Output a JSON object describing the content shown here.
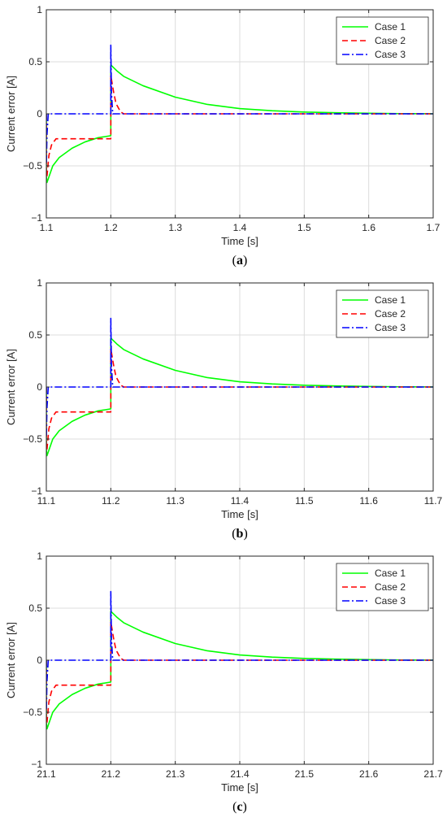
{
  "colors": {
    "case1": "#00ff00",
    "case2": "#ff0000",
    "case3": "#0000ff",
    "grid": "#dcdcdc",
    "axes": "#262626"
  },
  "chart_data": [
    {
      "type": "line",
      "panel": "a",
      "caption_letter": "a",
      "xlabel": "Time [s]",
      "ylabel": "Current error [A]",
      "xlim": [
        1.1,
        1.7
      ],
      "ylim": [
        -1,
        1
      ],
      "xticks": [
        1.1,
        1.2,
        1.3,
        1.4,
        1.5,
        1.6,
        1.7
      ],
      "xtick_labels": [
        "1.1",
        "1.2",
        "1.3",
        "1.4",
        "1.5",
        "1.6",
        "1.7"
      ],
      "yticks": [
        -1,
        -0.5,
        0,
        0.5,
        1
      ],
      "ytick_labels": [
        "−1",
        "−0.5",
        "0",
        "0.5",
        "1"
      ],
      "grid": true,
      "legend_position": "top-right",
      "series": [
        {
          "name": "Case 1",
          "style": "solid",
          "color": "#00ff00",
          "x": [
            1.1,
            1.1,
            1.101,
            1.11,
            1.12,
            1.14,
            1.16,
            1.18,
            1.2,
            1.2,
            1.21,
            1.22,
            1.25,
            1.3,
            1.35,
            1.4,
            1.45,
            1.5,
            1.55,
            1.6,
            1.65,
            1.7
          ],
          "y": [
            0,
            -0.6,
            -0.66,
            -0.5,
            -0.42,
            -0.33,
            -0.27,
            -0.23,
            -0.21,
            0.47,
            0.41,
            0.36,
            0.27,
            0.16,
            0.09,
            0.05,
            0.03,
            0.017,
            0.01,
            0.005,
            0.002,
            0.001
          ]
        },
        {
          "name": "Case 2",
          "style": "dashed",
          "color": "#ff0000",
          "x": [
            1.1,
            1.1,
            1.101,
            1.104,
            1.108,
            1.115,
            1.2,
            1.2,
            1.204,
            1.208,
            1.215,
            1.22,
            1.7
          ],
          "y": [
            0,
            -0.58,
            -0.6,
            -0.4,
            -0.3,
            -0.24,
            -0.24,
            0.37,
            0.22,
            0.1,
            0.02,
            0,
            0
          ]
        },
        {
          "name": "Case 3",
          "style": "dashdot",
          "color": "#0000ff",
          "x": [
            1.1,
            1.1,
            1.101,
            1.103,
            1.2,
            1.2,
            1.201,
            1.203,
            1.7
          ],
          "y": [
            0,
            -0.5,
            -0.2,
            0,
            0,
            0.66,
            0.2,
            0,
            0
          ]
        }
      ]
    },
    {
      "type": "line",
      "panel": "b",
      "caption_letter": "b",
      "xlabel": "Time [s]",
      "ylabel": "Current error [A]",
      "xlim": [
        11.1,
        11.7
      ],
      "ylim": [
        -1,
        1
      ],
      "xticks": [
        11.1,
        11.2,
        11.3,
        11.4,
        11.5,
        11.6,
        11.7
      ],
      "xtick_labels": [
        "11.1",
        "11.2",
        "11.3",
        "11.4",
        "11.5",
        "11.6",
        "11.7"
      ],
      "yticks": [
        -1,
        -0.5,
        0,
        0.5,
        1
      ],
      "ytick_labels": [
        "−1",
        "−0.5",
        "0",
        "0.5",
        "1"
      ],
      "grid": true,
      "legend_position": "top-right",
      "series": [
        {
          "name": "Case 1",
          "style": "solid",
          "color": "#00ff00",
          "x": [
            11.1,
            11.1,
            11.101,
            11.11,
            11.12,
            11.14,
            11.16,
            11.18,
            11.2,
            11.2,
            11.21,
            11.22,
            11.25,
            11.3,
            11.35,
            11.4,
            11.45,
            11.5,
            11.55,
            11.6,
            11.65,
            11.7
          ],
          "y": [
            0,
            -0.6,
            -0.66,
            -0.5,
            -0.42,
            -0.33,
            -0.27,
            -0.23,
            -0.21,
            0.47,
            0.41,
            0.36,
            0.27,
            0.16,
            0.09,
            0.05,
            0.03,
            0.017,
            0.01,
            0.005,
            0.002,
            0.001
          ]
        },
        {
          "name": "Case 2",
          "style": "dashed",
          "color": "#ff0000",
          "x": [
            11.1,
            11.1,
            11.101,
            11.104,
            11.108,
            11.115,
            11.2,
            11.2,
            11.204,
            11.208,
            11.215,
            11.22,
            11.7
          ],
          "y": [
            0,
            -0.58,
            -0.6,
            -0.4,
            -0.3,
            -0.24,
            -0.24,
            0.37,
            0.22,
            0.1,
            0.02,
            0,
            0
          ]
        },
        {
          "name": "Case 3",
          "style": "dashdot",
          "color": "#0000ff",
          "x": [
            11.1,
            11.1,
            11.101,
            11.103,
            11.2,
            11.2,
            11.201,
            11.203,
            11.7
          ],
          "y": [
            0,
            -0.5,
            -0.2,
            0,
            0,
            0.66,
            0.2,
            0,
            0
          ]
        }
      ]
    },
    {
      "type": "line",
      "panel": "c",
      "caption_letter": "c",
      "xlabel": "Time [s]",
      "ylabel": "Current error [A]",
      "xlim": [
        21.1,
        21.7
      ],
      "ylim": [
        -1,
        1
      ],
      "xticks": [
        21.1,
        21.2,
        21.3,
        21.4,
        21.5,
        21.6,
        21.7
      ],
      "xtick_labels": [
        "21.1",
        "21.2",
        "21.3",
        "21.4",
        "21.5",
        "21.6",
        "21.7"
      ],
      "yticks": [
        -1,
        -0.5,
        0,
        0.5,
        1
      ],
      "ytick_labels": [
        "−1",
        "−0.5",
        "0",
        "0.5",
        "1"
      ],
      "grid": true,
      "legend_position": "top-right",
      "series": [
        {
          "name": "Case 1",
          "style": "solid",
          "color": "#00ff00",
          "x": [
            21.1,
            21.1,
            21.101,
            21.11,
            21.12,
            21.14,
            21.16,
            21.18,
            21.2,
            21.2,
            21.21,
            21.22,
            21.25,
            21.3,
            21.35,
            21.4,
            21.45,
            21.5,
            21.55,
            21.6,
            21.65,
            21.7
          ],
          "y": [
            0,
            -0.6,
            -0.66,
            -0.5,
            -0.42,
            -0.33,
            -0.27,
            -0.23,
            -0.21,
            0.47,
            0.41,
            0.36,
            0.27,
            0.16,
            0.09,
            0.05,
            0.03,
            0.017,
            0.01,
            0.005,
            0.002,
            0.001
          ]
        },
        {
          "name": "Case 2",
          "style": "dashed",
          "color": "#ff0000",
          "x": [
            21.1,
            21.1,
            21.101,
            21.104,
            21.108,
            21.115,
            21.2,
            21.2,
            21.204,
            21.208,
            21.215,
            21.22,
            21.7
          ],
          "y": [
            0,
            -0.58,
            -0.6,
            -0.4,
            -0.3,
            -0.24,
            -0.24,
            0.37,
            0.22,
            0.1,
            0.02,
            0,
            0
          ]
        },
        {
          "name": "Case 3",
          "style": "dashdot",
          "color": "#0000ff",
          "x": [
            21.1,
            21.1,
            21.101,
            21.103,
            21.2,
            21.2,
            21.201,
            21.203,
            21.7
          ],
          "y": [
            0,
            -0.5,
            -0.2,
            0,
            0,
            0.66,
            0.2,
            0,
            0
          ]
        }
      ]
    }
  ]
}
